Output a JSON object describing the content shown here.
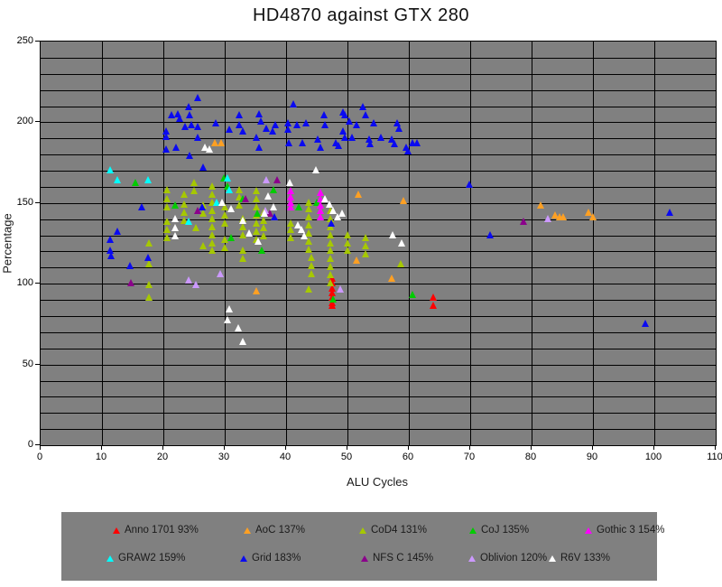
{
  "title": "HD4870 against GTX 280",
  "chart_data": {
    "type": "scatter",
    "title": "HD4870 against GTX 280",
    "xlabel": "ALU Cycles",
    "ylabel": "Percentage",
    "xlim": [
      0,
      110
    ],
    "ylim": [
      0,
      250
    ],
    "x_ticks": [
      0,
      10,
      20,
      30,
      40,
      50,
      60,
      70,
      80,
      90,
      100,
      110
    ],
    "y_ticks": [
      0,
      50,
      100,
      150,
      200,
      250
    ],
    "grid_step_x": 10,
    "grid_step_y": 10,
    "grid_on": true,
    "marker_shape": "triangle",
    "plot_bg_color": "#808080",
    "grid_color": "#000000",
    "legend_position": "bottom",
    "legend_rows": 2,
    "series": [
      {
        "name": "Anno 1701",
        "label": "Anno 1701 93%",
        "color": "#FF0000",
        "points": [
          [
            47.5,
            103
          ],
          [
            47.5,
            100
          ],
          [
            47.5,
            97
          ],
          [
            47.5,
            94
          ],
          [
            47.5,
            91
          ],
          [
            47.5,
            88
          ],
          [
            47.5,
            86
          ],
          [
            64,
            91
          ],
          [
            64,
            86
          ]
        ]
      },
      {
        "name": "AoC",
        "label": "AoC 137%",
        "color": "#FFA023",
        "points": [
          [
            28.4,
            187
          ],
          [
            29.4,
            187
          ],
          [
            35.1,
            95
          ],
          [
            51.5,
            114
          ],
          [
            51.8,
            155
          ],
          [
            57.2,
            103
          ],
          [
            59.1,
            151
          ],
          [
            81.5,
            148
          ],
          [
            83.8,
            142
          ],
          [
            84.6,
            141
          ],
          [
            85.1,
            141
          ],
          [
            89.3,
            144
          ],
          [
            90,
            141
          ]
        ]
      },
      {
        "name": "CoD4",
        "label": "CoD4 131%",
        "color": "#A6C800",
        "points": [
          [
            17.6,
            125
          ],
          [
            17.6,
            112
          ],
          [
            17.6,
            99
          ],
          [
            17.6,
            91
          ],
          [
            20.6,
            158
          ],
          [
            20.6,
            152
          ],
          [
            20.6,
            147
          ],
          [
            20.6,
            138
          ],
          [
            20.6,
            133
          ],
          [
            20.6,
            128
          ],
          [
            23.4,
            155
          ],
          [
            23.4,
            149
          ],
          [
            23.4,
            144
          ],
          [
            23.4,
            139
          ],
          [
            25,
            162
          ],
          [
            25,
            157
          ],
          [
            25.3,
            134
          ],
          [
            26.5,
            148
          ],
          [
            26.5,
            143
          ],
          [
            26.5,
            123
          ],
          [
            27.9,
            160
          ],
          [
            27.9,
            155
          ],
          [
            27.9,
            150
          ],
          [
            27.9,
            145
          ],
          [
            27.9,
            140
          ],
          [
            27.9,
            135
          ],
          [
            27.9,
            130
          ],
          [
            27.9,
            125
          ],
          [
            27.9,
            120
          ],
          [
            30,
            147
          ],
          [
            30,
            142
          ],
          [
            30,
            137
          ],
          [
            30,
            127
          ],
          [
            30,
            122
          ],
          [
            32.3,
            158
          ],
          [
            32.3,
            153
          ],
          [
            32.3,
            148
          ],
          [
            33,
            140
          ],
          [
            33,
            135
          ],
          [
            33,
            130
          ],
          [
            33,
            120
          ],
          [
            33,
            115
          ],
          [
            35.2,
            157
          ],
          [
            35.2,
            152
          ],
          [
            35.2,
            147
          ],
          [
            35.2,
            142
          ],
          [
            35.2,
            137
          ],
          [
            35.2,
            132
          ],
          [
            35.2,
            127
          ],
          [
            36.3,
            144
          ],
          [
            36.3,
            139
          ],
          [
            36.3,
            134
          ],
          [
            36.3,
            129
          ],
          [
            40.7,
            137
          ],
          [
            40.7,
            133
          ],
          [
            40.7,
            128
          ],
          [
            43.7,
            150
          ],
          [
            43.7,
            146
          ],
          [
            43.7,
            141
          ],
          [
            43.7,
            136
          ],
          [
            43.7,
            131
          ],
          [
            43.7,
            126
          ],
          [
            43.7,
            121
          ],
          [
            43.7,
            96
          ],
          [
            44.1,
            116
          ],
          [
            44.1,
            111
          ],
          [
            44.1,
            106
          ],
          [
            47.2,
            145
          ],
          [
            47.2,
            140
          ],
          [
            47.2,
            135
          ],
          [
            47.2,
            130
          ],
          [
            47.2,
            125
          ],
          [
            47.2,
            120
          ],
          [
            47.2,
            115
          ],
          [
            47.2,
            110
          ],
          [
            47.2,
            105
          ],
          [
            47.2,
            100
          ],
          [
            50,
            130
          ],
          [
            50,
            125
          ],
          [
            50,
            120
          ],
          [
            53,
            128
          ],
          [
            53,
            123
          ],
          [
            53,
            118
          ],
          [
            58.7,
            112
          ]
        ]
      },
      {
        "name": "CoJ",
        "label": "CoJ 135%",
        "color": "#00CC00",
        "points": [
          [
            15.4,
            162
          ],
          [
            21.9,
            148
          ],
          [
            29.9,
            165
          ],
          [
            30.4,
            160
          ],
          [
            33,
            152
          ],
          [
            35.3,
            143
          ],
          [
            38,
            158
          ],
          [
            42,
            147
          ],
          [
            45,
            150
          ],
          [
            31,
            128
          ],
          [
            36,
            120
          ],
          [
            47.6,
            90
          ],
          [
            60.6,
            93
          ]
        ]
      },
      {
        "name": "Gothic 3",
        "label": "Gothic 3 154%",
        "color": "#FF00FF",
        "points": [
          [
            40.7,
            157
          ],
          [
            40.7,
            153
          ],
          [
            40.7,
            150
          ],
          [
            40.7,
            147
          ],
          [
            45.6,
            156
          ],
          [
            45.6,
            152
          ],
          [
            45.6,
            148
          ],
          [
            45.6,
            145
          ],
          [
            45.6,
            141
          ]
        ]
      },
      {
        "name": "GRAW2",
        "label": "GRAW2 159%",
        "color": "#00FFFF",
        "points": [
          [
            11.3,
            170
          ],
          [
            12.5,
            164
          ],
          [
            17.5,
            164
          ],
          [
            24.1,
            138
          ],
          [
            28.7,
            150
          ],
          [
            30.4,
            165
          ],
          [
            30.7,
            158
          ]
        ]
      },
      {
        "name": "Grid",
        "label": "Grid 183%",
        "color": "#0A0AF0",
        "points": [
          [
            11.3,
            127
          ],
          [
            11.3,
            120
          ],
          [
            11.5,
            117
          ],
          [
            12.5,
            132
          ],
          [
            14.6,
            111
          ],
          [
            16.5,
            147
          ],
          [
            17.5,
            116
          ],
          [
            20.4,
            194
          ],
          [
            20.4,
            191
          ],
          [
            20.4,
            183
          ],
          [
            21.3,
            204
          ],
          [
            22.1,
            184
          ],
          [
            22.4,
            205
          ],
          [
            22.6,
            202
          ],
          [
            23.5,
            197
          ],
          [
            24.1,
            209
          ],
          [
            24.3,
            204
          ],
          [
            24.3,
            179
          ],
          [
            24.6,
            198
          ],
          [
            25.6,
            215
          ],
          [
            25.6,
            197
          ],
          [
            25.6,
            190
          ],
          [
            26.3,
            147
          ],
          [
            26.5,
            172
          ],
          [
            28.5,
            199
          ],
          [
            30.7,
            195
          ],
          [
            32.4,
            204
          ],
          [
            32.4,
            198
          ],
          [
            32.9,
            194
          ],
          [
            35.1,
            190
          ],
          [
            35.6,
            205
          ],
          [
            35.9,
            200
          ],
          [
            35.6,
            184
          ],
          [
            36.8,
            196
          ],
          [
            37.8,
            194
          ],
          [
            38.1,
            141
          ],
          [
            38.2,
            198
          ],
          [
            40.3,
            199
          ],
          [
            40.3,
            195
          ],
          [
            40.4,
            187
          ],
          [
            41.2,
            211
          ],
          [
            41.8,
            198
          ],
          [
            42.6,
            187
          ],
          [
            43.2,
            199
          ],
          [
            45.1,
            189
          ],
          [
            45.6,
            184
          ],
          [
            46.2,
            204
          ],
          [
            46.3,
            198
          ],
          [
            47.4,
            137
          ],
          [
            48.1,
            187
          ],
          [
            48.5,
            185
          ],
          [
            49.3,
            206
          ],
          [
            49.3,
            194
          ],
          [
            49.6,
            204
          ],
          [
            49.6,
            190
          ],
          [
            50.3,
            200
          ],
          [
            50.7,
            190
          ],
          [
            51.5,
            198
          ],
          [
            52.5,
            209
          ],
          [
            52.9,
            204
          ],
          [
            53.5,
            189
          ],
          [
            53.7,
            186
          ],
          [
            54.3,
            199
          ],
          [
            55.4,
            190
          ],
          [
            57.2,
            189
          ],
          [
            57.6,
            186
          ],
          [
            58.1,
            199
          ],
          [
            58.4,
            196
          ],
          [
            59.6,
            184
          ],
          [
            59.9,
            182
          ],
          [
            60.6,
            187
          ],
          [
            61.3,
            187
          ],
          [
            69.9,
            161
          ],
          [
            73.2,
            130
          ],
          [
            98.5,
            75
          ],
          [
            102.5,
            144
          ]
        ]
      },
      {
        "name": "NFS C",
        "label": "NFS C 145%",
        "color": "#8B008B",
        "points": [
          [
            14.7,
            100
          ],
          [
            25.6,
            145
          ],
          [
            33.4,
            152
          ],
          [
            37.4,
            143
          ],
          [
            38.5,
            164
          ],
          [
            78.7,
            138
          ]
        ]
      },
      {
        "name": "Oblivion",
        "label": "Oblivion 120%",
        "color": "#CC99FF",
        "points": [
          [
            24.1,
            102
          ],
          [
            25.3,
            99
          ],
          [
            29.3,
            106
          ],
          [
            36.6,
            145
          ],
          [
            36.8,
            164
          ],
          [
            48.8,
            96
          ],
          [
            82.6,
            140
          ]
        ]
      },
      {
        "name": "R6V",
        "label": "R6V 133%",
        "color": "#FFFFFF",
        "points": [
          [
            21.9,
            140
          ],
          [
            21.9,
            134
          ],
          [
            21.9,
            129
          ],
          [
            26.8,
            184
          ],
          [
            27.5,
            183
          ],
          [
            29.5,
            150
          ],
          [
            31,
            146
          ],
          [
            33,
            139
          ],
          [
            34,
            131
          ],
          [
            35.5,
            126
          ],
          [
            36.5,
            143
          ],
          [
            37,
            154
          ],
          [
            38,
            147
          ],
          [
            40.6,
            162
          ],
          [
            41.9,
            136
          ],
          [
            42.5,
            133
          ],
          [
            43,
            129
          ],
          [
            44.8,
            170
          ],
          [
            46.3,
            152
          ],
          [
            47,
            149
          ],
          [
            47.7,
            145
          ],
          [
            48.4,
            141
          ],
          [
            49.1,
            143
          ],
          [
            57.4,
            130
          ],
          [
            58.8,
            125
          ],
          [
            30.7,
            84
          ],
          [
            30.4,
            77
          ],
          [
            32.2,
            72
          ],
          [
            32.9,
            64
          ]
        ]
      }
    ]
  }
}
